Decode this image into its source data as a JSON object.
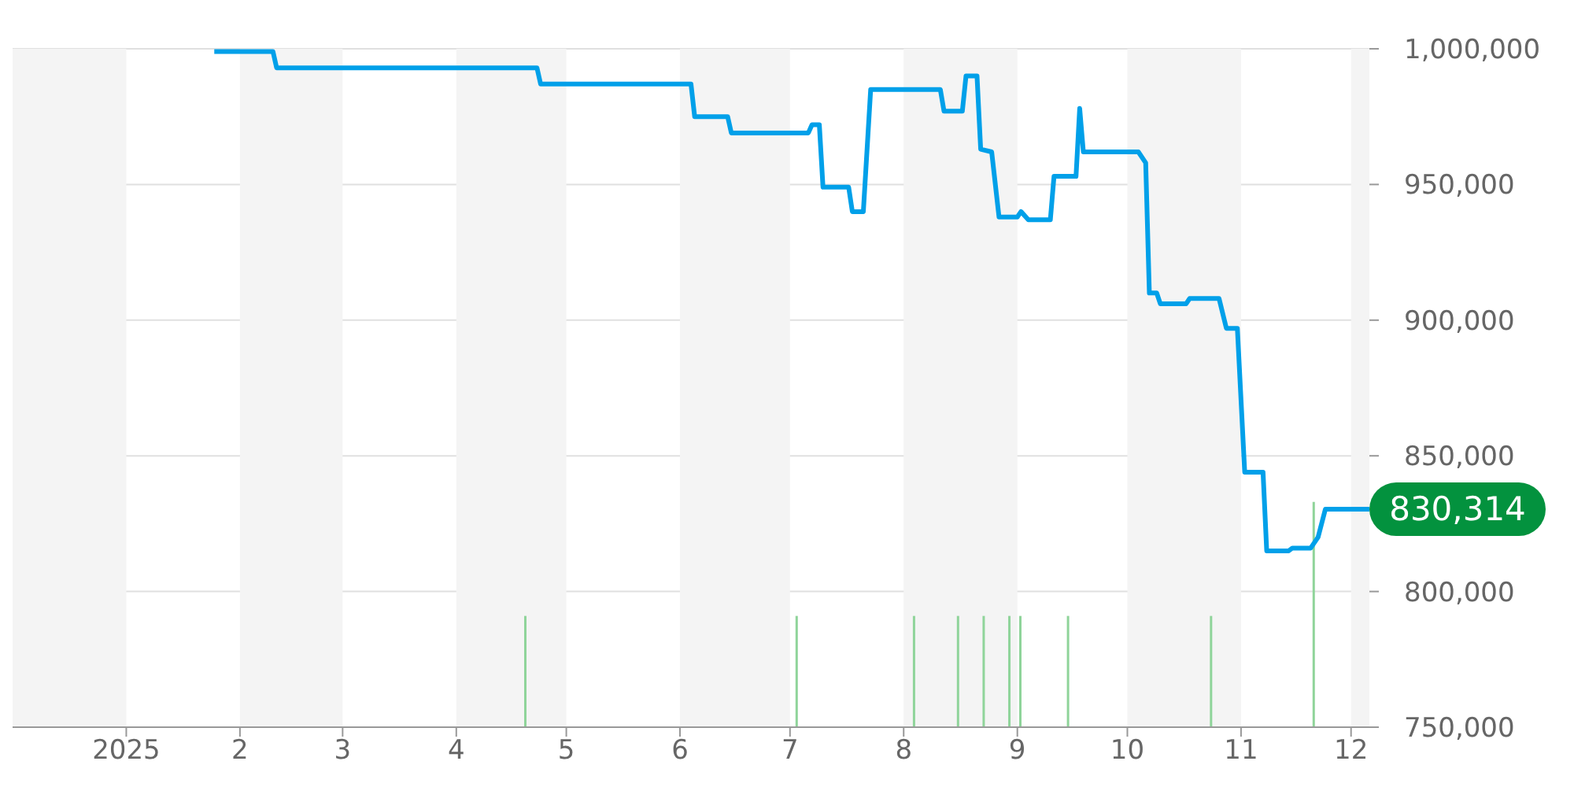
{
  "chart_data": {
    "type": "line",
    "xlim": [
      "2024-12-01",
      "2025-12-06"
    ],
    "xticks": [
      {
        "value": "2025-01-01",
        "label": "2025"
      },
      {
        "value": "2025-02-01",
        "label": "2"
      },
      {
        "value": "2025-03-01",
        "label": "3"
      },
      {
        "value": "2025-04-01",
        "label": "4"
      },
      {
        "value": "2025-05-01",
        "label": "5"
      },
      {
        "value": "2025-06-01",
        "label": "6"
      },
      {
        "value": "2025-07-01",
        "label": "7"
      },
      {
        "value": "2025-08-01",
        "label": "8"
      },
      {
        "value": "2025-09-01",
        "label": "9"
      },
      {
        "value": "2025-10-01",
        "label": "10"
      },
      {
        "value": "2025-11-01",
        "label": "11"
      },
      {
        "value": "2025-12-01",
        "label": "12"
      }
    ],
    "ylim": [
      750000,
      1000000
    ],
    "yticks": [
      {
        "value": 750000,
        "label": "750,000"
      },
      {
        "value": 800000,
        "label": "800,000"
      },
      {
        "value": 850000,
        "label": "850,000"
      },
      {
        "value": 900000,
        "label": "900,000"
      },
      {
        "value": 950000,
        "label": "950,000"
      },
      {
        "value": 1000000,
        "label": "1,000,000"
      }
    ],
    "grid": "y",
    "legend": false,
    "marker": "none",
    "line_style": "solid",
    "bands": [
      {
        "axis": "x",
        "from": "2024-12-01",
        "to": "2025-01-01",
        "color": "#f4f4f4"
      },
      {
        "axis": "x",
        "from": "2025-02-01",
        "to": "2025-03-01",
        "color": "#f4f4f4"
      },
      {
        "axis": "x",
        "from": "2025-04-01",
        "to": "2025-05-01",
        "color": "#f4f4f4"
      },
      {
        "axis": "x",
        "from": "2025-06-01",
        "to": "2025-07-01",
        "color": "#f4f4f4"
      },
      {
        "axis": "x",
        "from": "2025-08-01",
        "to": "2025-09-01",
        "color": "#f4f4f4"
      },
      {
        "axis": "x",
        "from": "2025-10-01",
        "to": "2025-11-01",
        "color": "#f4f4f4"
      },
      {
        "axis": "x",
        "from": "2025-12-01",
        "to": "2025-12-06",
        "color": "#f4f4f4"
      }
    ],
    "annotations": [
      {
        "text": "830,314",
        "x": "2025-12-06",
        "y": 830314
      }
    ],
    "series": [
      {
        "color": "#00a0e9",
        "x": [
          "2025-01-25",
          "2025-02-10",
          "2025-02-11",
          "2025-04-23",
          "2025-04-24",
          "2025-06-04",
          "2025-06-05",
          "2025-06-14",
          "2025-06-15",
          "2025-07-06",
          "2025-07-07",
          "2025-07-09",
          "2025-07-10",
          "2025-07-17",
          "2025-07-18",
          "2025-07-21",
          "2025-07-23",
          "2025-08-11",
          "2025-08-12",
          "2025-08-17",
          "2025-08-18",
          "2025-08-21",
          "2025-08-22",
          "2025-08-25",
          "2025-08-27",
          "2025-09-01",
          "2025-09-02",
          "2025-09-04",
          "2025-09-10",
          "2025-09-11",
          "2025-09-17",
          "2025-09-18",
          "2025-09-19",
          "2025-10-04",
          "2025-10-06",
          "2025-10-07",
          "2025-10-09",
          "2025-10-10",
          "2025-10-17",
          "2025-10-18",
          "2025-10-26",
          "2025-10-28",
          "2025-10-31",
          "2025-11-02",
          "2025-11-07",
          "2025-11-08",
          "2025-11-14",
          "2025-11-15",
          "2025-11-20",
          "2025-11-22",
          "2025-11-24",
          "2025-12-06"
        ],
        "values": [
          999000,
          999000,
          993000,
          993000,
          987000,
          987000,
          975000,
          975000,
          969000,
          969000,
          972000,
          972000,
          949000,
          949000,
          940000,
          940000,
          985000,
          985000,
          977000,
          977000,
          990000,
          990000,
          963000,
          962000,
          938000,
          938000,
          940000,
          937000,
          937000,
          953000,
          953000,
          978000,
          962000,
          962000,
          958000,
          910000,
          910000,
          906000,
          906000,
          908000,
          908000,
          897000,
          897000,
          844000,
          844000,
          815000,
          815000,
          816000,
          816000,
          820000,
          830314,
          830314
        ]
      },
      {
        "type": "bar",
        "color": "#8fd49a",
        "x": [
          "2025-04-20",
          "2025-07-03",
          "2025-08-04",
          "2025-08-16",
          "2025-08-23",
          "2025-08-30",
          "2025-09-02",
          "2025-09-15",
          "2025-10-24",
          "2025-11-21"
        ],
        "values": [
          791000,
          791000,
          791000,
          791000,
          791000,
          791000,
          791000,
          791000,
          791000,
          833000
        ]
      }
    ]
  }
}
